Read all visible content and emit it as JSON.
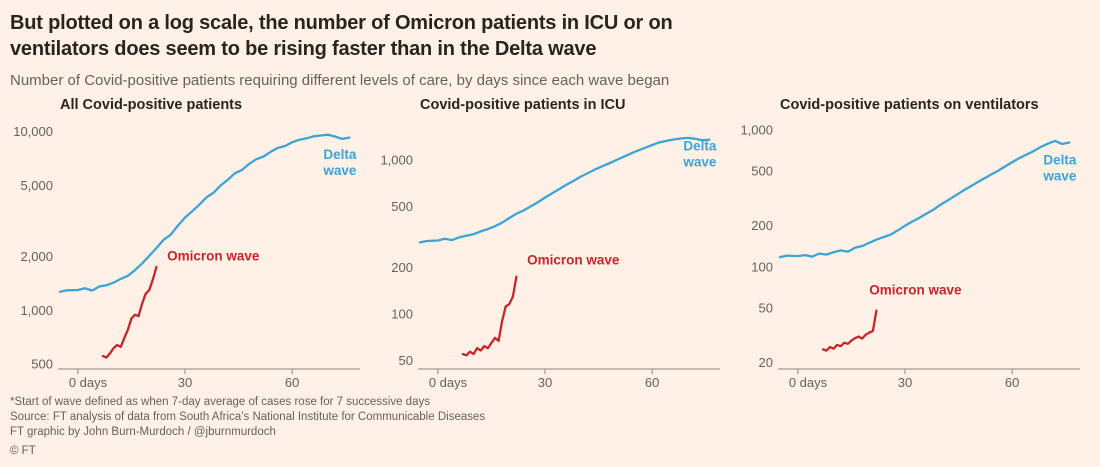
{
  "header": {
    "title_line1": "But plotted on a log scale, the number of Omicron patients in ICU or on",
    "title_line2": "ventilators does seem to be rising faster than in the Delta wave",
    "subtitle": "Number of Covid-positive patients requiring different levels of care, by days since each wave began"
  },
  "footer": {
    "footnote": "*Start of wave defined as when 7-day average of cases rose for 7 successive days",
    "source": "Source: FT analysis of data from South Africa’s National Institute for Communicable Diseases",
    "credit": "FT graphic by John Burn-Murdoch / @jburnmurdoch",
    "copyright": "© FT"
  },
  "colors": {
    "background": "#FFF1E5",
    "title_text": "#29241F",
    "muted_text": "#66605C",
    "axis": "#8F867C",
    "tick_text": "#66605C",
    "delta": "#3DA3D5",
    "omicron": "#C5262E"
  },
  "chart_data": [
    {
      "type": "line",
      "title": "All Covid-positive patients",
      "x_axis": {
        "ticks": [
          0,
          30,
          60
        ],
        "labels": [
          "0 days",
          "30",
          "60"
        ],
        "lim": [
          -5,
          79
        ]
      },
      "y_axis": {
        "scale": "log",
        "ticks": [
          500,
          1000,
          2000,
          5000,
          10000
        ],
        "labels": [
          "500",
          "1,000",
          "2,000",
          "5,000",
          "10,000"
        ],
        "lim": [
          470,
          11750
        ]
      },
      "series": [
        {
          "name": "Delta wave",
          "color": "#3DA3D5",
          "label": {
            "lines": [
              "Delta",
              "wave"
            ],
            "x": 78,
            "y": 7000,
            "anchor": "end"
          },
          "x": [
            -5,
            -3,
            0,
            2,
            4,
            6,
            8,
            10,
            12,
            14,
            16,
            18,
            20,
            22,
            24,
            26,
            28,
            30,
            32,
            34,
            36,
            38,
            40,
            42,
            44,
            46,
            48,
            50,
            52,
            54,
            56,
            58,
            60,
            62,
            64,
            66,
            68,
            70,
            72,
            74,
            76
          ],
          "y": [
            1270,
            1295,
            1300,
            1330,
            1290,
            1360,
            1380,
            1430,
            1500,
            1560,
            1680,
            1830,
            2020,
            2230,
            2480,
            2650,
            2980,
            3300,
            3580,
            3900,
            4280,
            4550,
            5000,
            5380,
            5850,
            6100,
            6600,
            7000,
            7250,
            7700,
            8100,
            8300,
            8700,
            9000,
            9150,
            9400,
            9500,
            9600,
            9380,
            9100,
            9250
          ]
        },
        {
          "name": "Omicron wave",
          "color": "#C5262E",
          "label": {
            "lines": [
              "Omicron wave"
            ],
            "x": 25,
            "y": 1900,
            "anchor": "start"
          },
          "x": [
            7,
            8,
            9,
            10,
            11,
            12,
            13,
            14,
            15,
            16,
            17,
            18,
            19,
            20,
            21,
            22
          ],
          "y": [
            555,
            545,
            575,
            615,
            640,
            625,
            700,
            780,
            900,
            945,
            930,
            1090,
            1240,
            1300,
            1490,
            1750
          ]
        }
      ]
    },
    {
      "type": "line",
      "title": "Covid-positive patients in ICU",
      "x_axis": {
        "ticks": [
          0,
          30,
          60
        ],
        "labels": [
          "0 days",
          "30",
          "60"
        ],
        "lim": [
          -5,
          79
        ]
      },
      "y_axis": {
        "scale": "log",
        "ticks": [
          50,
          100,
          200,
          500,
          1000
        ],
        "labels": [
          "50",
          "100",
          "200",
          "500",
          "1,000"
        ],
        "lim": [
          44,
          1845
        ]
      },
      "series": [
        {
          "name": "Delta wave",
          "color": "#3DA3D5",
          "label": {
            "lines": [
              "Delta",
              "wave"
            ],
            "x": 78,
            "y": 1150,
            "anchor": "end"
          },
          "x": [
            -5,
            -3,
            0,
            2,
            4,
            6,
            8,
            10,
            12,
            14,
            16,
            18,
            20,
            22,
            24,
            26,
            28,
            30,
            32,
            34,
            36,
            38,
            40,
            42,
            44,
            46,
            48,
            50,
            52,
            54,
            56,
            58,
            60,
            62,
            64,
            66,
            68,
            70,
            72,
            74,
            76
          ],
          "y": [
            292,
            298,
            300,
            308,
            302,
            315,
            322,
            330,
            344,
            356,
            372,
            392,
            420,
            448,
            470,
            500,
            532,
            570,
            608,
            648,
            690,
            732,
            780,
            822,
            868,
            910,
            952,
            1000,
            1048,
            1100,
            1150,
            1200,
            1250,
            1300,
            1330,
            1358,
            1378,
            1390,
            1372,
            1342,
            1352
          ]
        },
        {
          "name": "Omicron wave",
          "color": "#C5262E",
          "label": {
            "lines": [
              "Omicron wave"
            ],
            "x": 25,
            "y": 210,
            "anchor": "start"
          },
          "x": [
            7,
            8,
            9,
            10,
            11,
            12,
            13,
            14,
            15,
            16,
            17,
            18,
            19,
            20,
            21,
            22
          ],
          "y": [
            55,
            54,
            57,
            55,
            60,
            58,
            62,
            60,
            65,
            70,
            67,
            90,
            112,
            116,
            130,
            175
          ]
        }
      ]
    },
    {
      "type": "line",
      "title": "Covid-positive patients on ventilators",
      "x_axis": {
        "ticks": [
          0,
          30,
          60
        ],
        "labels": [
          "0 days",
          "30",
          "60"
        ],
        "lim": [
          -5,
          79
        ]
      },
      "y_axis": {
        "scale": "log",
        "ticks": [
          20,
          50,
          100,
          200,
          500,
          1000
        ],
        "labels": [
          "20",
          "50",
          "100",
          "200",
          "500",
          "1,000"
        ],
        "lim": [
          18,
          1200
        ]
      },
      "series": [
        {
          "name": "Delta wave",
          "color": "#3DA3D5",
          "label": {
            "lines": [
              "Delta",
              "wave"
            ],
            "x": 78,
            "y": 560,
            "anchor": "end"
          },
          "x": [
            -5,
            -3,
            0,
            2,
            4,
            6,
            8,
            10,
            12,
            14,
            16,
            18,
            20,
            22,
            24,
            26,
            28,
            30,
            32,
            34,
            36,
            38,
            40,
            42,
            44,
            46,
            48,
            50,
            52,
            54,
            56,
            58,
            60,
            62,
            64,
            66,
            68,
            70,
            72,
            74,
            76
          ],
          "y": [
            118,
            121,
            120,
            122,
            119,
            125,
            123,
            128,
            132,
            129,
            138,
            142,
            150,
            158,
            165,
            172,
            185,
            200,
            214,
            228,
            245,
            262,
            285,
            306,
            330,
            356,
            382,
            410,
            440,
            470,
            502,
            540,
            580,
            622,
            660,
            700,
            750,
            792,
            830,
            788,
            808
          ]
        },
        {
          "name": "Omicron wave",
          "color": "#C5262E",
          "label": {
            "lines": [
              "Omicron wave"
            ],
            "x": 20,
            "y": 63,
            "anchor": "start"
          },
          "x": [
            7,
            8,
            9,
            10,
            11,
            12,
            13,
            14,
            15,
            16,
            17,
            18,
            19,
            20,
            21,
            22
          ],
          "y": [
            25,
            24.5,
            26,
            25.3,
            27,
            26.4,
            28,
            27.5,
            29,
            30.2,
            31,
            30,
            32,
            33.2,
            34,
            48
          ]
        }
      ]
    }
  ]
}
